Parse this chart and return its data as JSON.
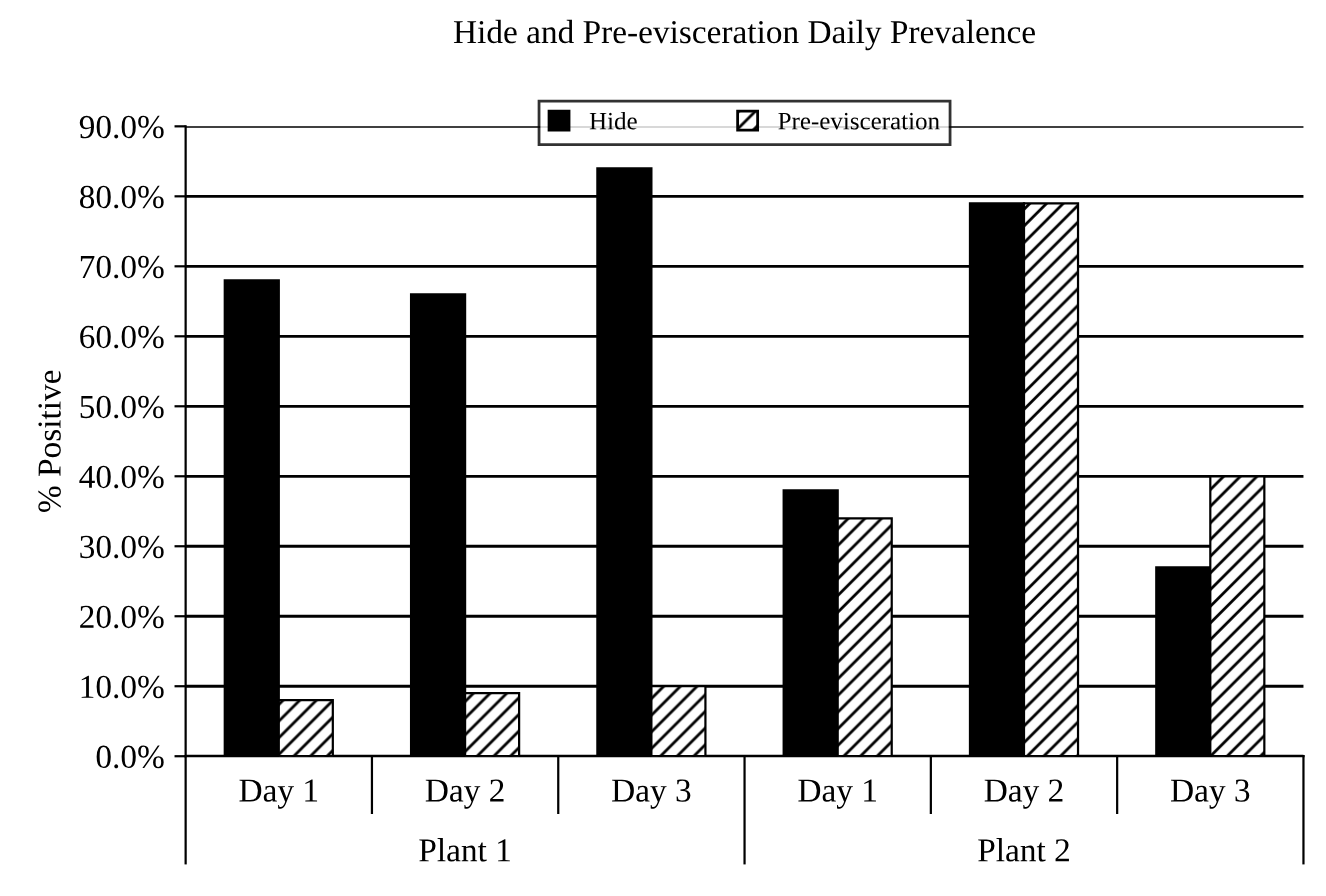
{
  "chart_data": {
    "type": "bar",
    "title": "Hide and Pre-evisceration Daily Prevalence",
    "ylabel": "% Positive",
    "categories": [
      "Day 1",
      "Day 2",
      "Day 3",
      "Day 1",
      "Day 2",
      "Day 3"
    ],
    "series": [
      {
        "name": "Hide",
        "color": "#000000",
        "values": [
          68,
          66,
          84,
          38,
          79,
          27
        ]
      },
      {
        "name": "Pre-evisceration",
        "color": "#000000",
        "values": [
          8,
          9,
          10,
          34,
          79,
          40
        ]
      }
    ],
    "annotations": [
      "Plant 1",
      "Plant 2"
    ],
    "ylim": [
      0,
      90
    ],
    "yticks": [
      {
        "value": 0,
        "label": "0.0%"
      },
      {
        "value": 10,
        "label": "10.0%"
      },
      {
        "value": 20,
        "label": "20.0%"
      },
      {
        "value": 30,
        "label": "30.0%"
      },
      {
        "value": 40,
        "label": "40.0%"
      },
      {
        "value": 50,
        "label": "50.0%"
      },
      {
        "value": 60,
        "label": "60.0%"
      },
      {
        "value": 70,
        "label": "70.0%"
      },
      {
        "value": 80,
        "label": "80.0%"
      },
      {
        "value": 90,
        "label": "90.0%"
      }
    ],
    "grid": "y",
    "legend": "top"
  }
}
